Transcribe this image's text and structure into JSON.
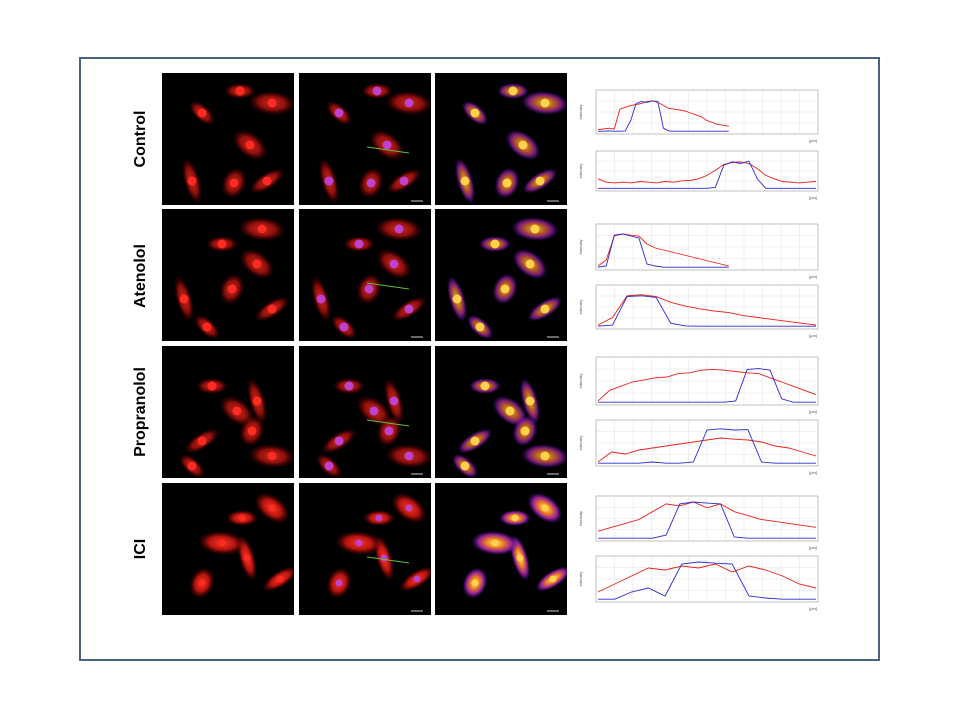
{
  "rows": [
    {
      "label": "Control"
    },
    {
      "label": "Atenolol"
    },
    {
      "label": "Propranolol"
    },
    {
      "label": "ICI"
    }
  ],
  "profile_axis": {
    "ylabel": "Intensity",
    "xunit": "[µm]"
  },
  "colors": {
    "frame": "#4a6282",
    "red_channel": "#e8201c",
    "blue_channel": "#2a2ad0",
    "merge_nucleus": "#c040d0",
    "heat_glow": "#ffd24a"
  },
  "chart_data": [
    {
      "type": "line",
      "row": "Control",
      "plot": 1,
      "series": [
        {
          "color": "red",
          "values": [
            0.06,
            0.08,
            0.1,
            0.08,
            0.6,
            0.65,
            0.7,
            0.72,
            0.75,
            0.8,
            0.82,
            0.78,
            0.7,
            0.62,
            0.6,
            0.58,
            0.55,
            0.5,
            0.45,
            0.4,
            0.3,
            0.25,
            0.2,
            0.18,
            0.15
          ]
        },
        {
          "color": "blue",
          "values": [
            0.02,
            0.02,
            0.03,
            0.02,
            0.02,
            0.03,
            0.3,
            0.75,
            0.8,
            0.78,
            0.82,
            0.8,
            0.1,
            0.03,
            0.02,
            0.02,
            0.02,
            0.02,
            0.02,
            0.02,
            0.02,
            0.02,
            0.02,
            0.02,
            0.02
          ]
        }
      ]
    },
    {
      "type": "line",
      "row": "Control",
      "plot": 2,
      "series": [
        {
          "color": "red",
          "values": [
            0.3,
            0.2,
            0.18,
            0.2,
            0.18,
            0.22,
            0.2,
            0.18,
            0.22,
            0.2,
            0.24,
            0.25,
            0.3,
            0.4,
            0.55,
            0.72,
            0.78,
            0.8,
            0.75,
            0.6,
            0.4,
            0.3,
            0.22,
            0.2,
            0.18,
            0.2,
            0.22
          ]
        },
        {
          "color": "blue",
          "values": [
            0.02,
            0.02,
            0.02,
            0.02,
            0.02,
            0.02,
            0.02,
            0.02,
            0.02,
            0.02,
            0.02,
            0.02,
            0.02,
            0.02,
            0.05,
            0.7,
            0.8,
            0.75,
            0.82,
            0.3,
            0.02,
            0.02,
            0.02,
            0.02,
            0.02,
            0.02,
            0.02
          ]
        }
      ]
    },
    {
      "type": "line",
      "row": "Atenolol",
      "plot": 1,
      "series": [
        {
          "color": "red",
          "values": [
            0.05,
            0.2,
            0.8,
            0.85,
            0.82,
            0.8,
            0.6,
            0.5,
            0.45,
            0.4,
            0.35,
            0.3,
            0.25,
            0.2,
            0.15,
            0.1,
            0.05
          ]
        },
        {
          "color": "blue",
          "values": [
            0.02,
            0.05,
            0.82,
            0.85,
            0.8,
            0.75,
            0.1,
            0.05,
            0.02,
            0.02,
            0.02,
            0.02,
            0.02,
            0.02,
            0.02,
            0.02,
            0.02
          ]
        }
      ]
    },
    {
      "type": "line",
      "row": "Atenolol",
      "plot": 2,
      "series": [
        {
          "color": "red",
          "values": [
            0.05,
            0.25,
            0.82,
            0.85,
            0.8,
            0.65,
            0.55,
            0.48,
            0.42,
            0.38,
            0.3,
            0.25,
            0.2,
            0.15,
            0.1,
            0.05
          ]
        },
        {
          "color": "blue",
          "values": [
            0.02,
            0.05,
            0.8,
            0.82,
            0.78,
            0.1,
            0.03,
            0.02,
            0.02,
            0.02,
            0.02,
            0.02,
            0.02,
            0.02,
            0.02,
            0.02
          ]
        }
      ]
    },
    {
      "type": "line",
      "row": "Propranolol",
      "plot": 1,
      "series": [
        {
          "color": "red",
          "values": [
            0.05,
            0.3,
            0.4,
            0.5,
            0.55,
            0.6,
            0.62,
            0.7,
            0.72,
            0.78,
            0.8,
            0.78,
            0.75,
            0.72,
            0.7,
            0.6,
            0.5,
            0.4,
            0.3,
            0.2
          ]
        },
        {
          "color": "blue",
          "values": [
            0.02,
            0.02,
            0.02,
            0.02,
            0.02,
            0.02,
            0.02,
            0.02,
            0.02,
            0.02,
            0.02,
            0.02,
            0.05,
            0.8,
            0.82,
            0.78,
            0.1,
            0.02,
            0.02,
            0.02
          ]
        }
      ]
    },
    {
      "type": "line",
      "row": "Propranolol",
      "plot": 2,
      "series": [
        {
          "color": "red",
          "values": [
            0.05,
            0.3,
            0.25,
            0.35,
            0.4,
            0.45,
            0.5,
            0.55,
            0.6,
            0.65,
            0.62,
            0.6,
            0.55,
            0.45,
            0.4,
            0.3,
            0.2
          ]
        },
        {
          "color": "blue",
          "values": [
            0.02,
            0.02,
            0.02,
            0.02,
            0.05,
            0.02,
            0.02,
            0.05,
            0.85,
            0.88,
            0.85,
            0.86,
            0.05,
            0.02,
            0.02,
            0.02,
            0.02
          ]
        }
      ]
    },
    {
      "type": "line",
      "row": "ICI",
      "plot": 1,
      "series": [
        {
          "color": "red",
          "values": [
            0.2,
            0.3,
            0.4,
            0.5,
            0.7,
            0.9,
            0.85,
            0.95,
            0.8,
            0.9,
            0.7,
            0.6,
            0.5,
            0.45,
            0.4,
            0.35,
            0.3
          ]
        },
        {
          "color": "blue",
          "values": [
            0.02,
            0.02,
            0.02,
            0.02,
            0.02,
            0.1,
            0.9,
            0.95,
            0.92,
            0.9,
            0.05,
            0.02,
            0.02,
            0.02,
            0.02,
            0.02,
            0.02
          ]
        }
      ]
    },
    {
      "type": "line",
      "row": "ICI",
      "plot": 2,
      "series": [
        {
          "color": "red",
          "values": [
            0.2,
            0.4,
            0.6,
            0.8,
            0.75,
            0.85,
            0.8,
            0.9,
            0.7,
            0.85,
            0.75,
            0.6,
            0.4,
            0.3
          ]
        },
        {
          "color": "blue",
          "values": [
            0.02,
            0.02,
            0.2,
            0.3,
            0.1,
            0.9,
            0.95,
            0.92,
            0.9,
            0.1,
            0.05,
            0.02,
            0.02,
            0.02
          ]
        }
      ]
    }
  ]
}
